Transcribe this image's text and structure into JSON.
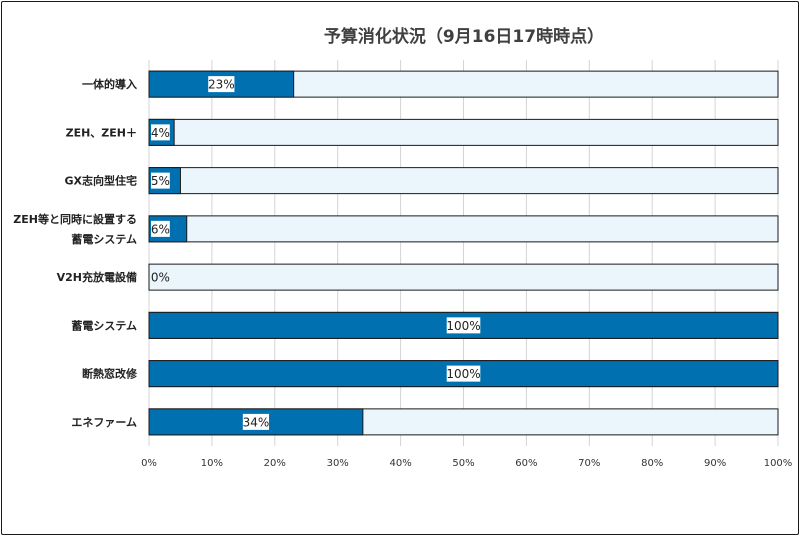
{
  "chart_data": {
    "type": "bar",
    "orientation": "horizontal",
    "stacked": true,
    "title": "予算消化状況（9月16日17時時点）",
    "categories": [
      [
        "一体的導入"
      ],
      [
        "ZEH、ZEH＋"
      ],
      [
        "GX志向型住宅"
      ],
      [
        "ZEH等と同時に設置する",
        "蓄電システム"
      ],
      [
        "V2H充放電設備"
      ],
      [
        "蓄電システム"
      ],
      [
        "断熱窓改修"
      ],
      [
        "エネファーム"
      ]
    ],
    "values": [
      23,
      4,
      5,
      6,
      0,
      100,
      100,
      34
    ],
    "data_labels": [
      "23%",
      "4%",
      "5%",
      "6%",
      "0%",
      "100%",
      "100%",
      "34%"
    ],
    "xlim": [
      0,
      100
    ],
    "x_ticks": [
      "0%",
      "10%",
      "20%",
      "30%",
      "40%",
      "50%",
      "60%",
      "70%",
      "80%",
      "90%",
      "100%"
    ],
    "grid": "vertical",
    "legend": "none",
    "colors": {
      "consumed": "#0070b0",
      "remaining": "#eaf5fc",
      "bar_border": "#1a1a1a",
      "grid": "#d4d4d4"
    }
  }
}
